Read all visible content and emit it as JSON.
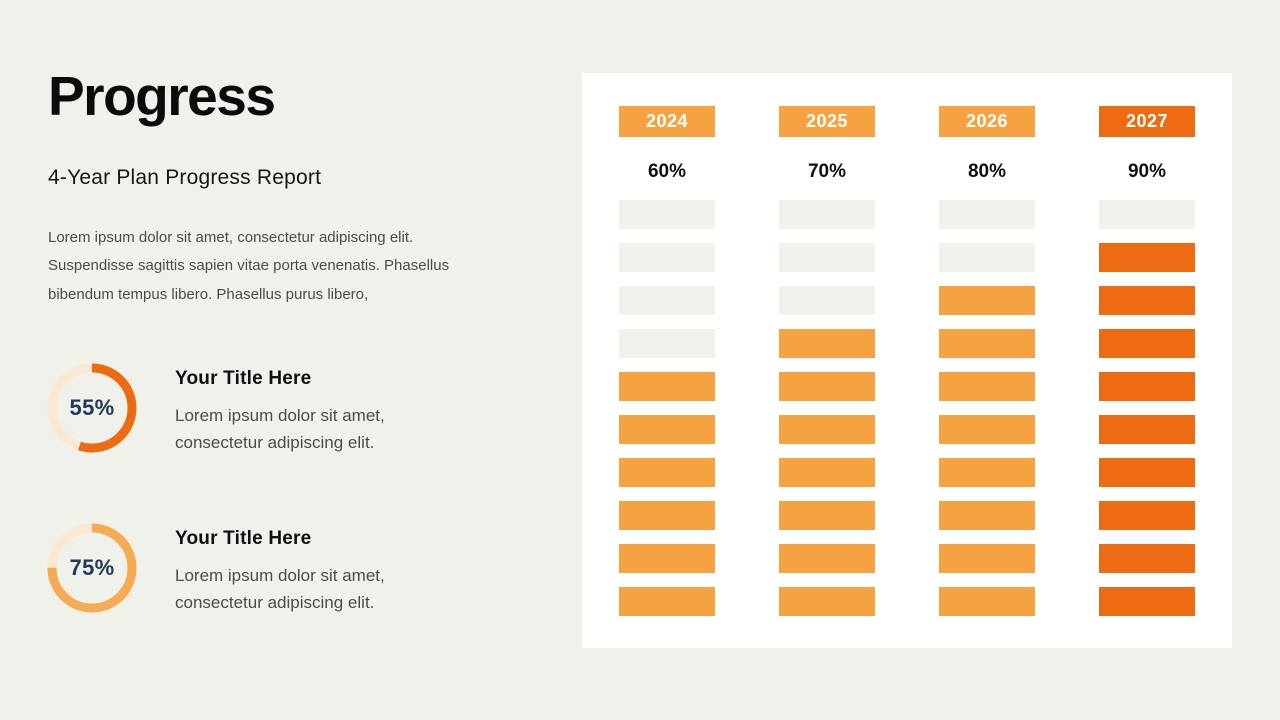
{
  "colors": {
    "background": "#F1F1EC",
    "panel": "#FFFFFF",
    "orange_light": "#F6A142",
    "orange_dark": "#ED6C13",
    "empty_cell": "#F1F1EB",
    "ring_track": "#FBE8D3",
    "navy": "#21395A",
    "body_text": "#4B4B4B"
  },
  "left": {
    "title": "Progress",
    "subtitle": "4-Year Plan Progress Report",
    "paragraph": "Lorem ipsum dolor sit amet, consectetur adipiscing elit. Suspendisse sagittis sapien vitae porta venenatis. Phasellus bibendum tempus libero. Phasellus purus libero,",
    "items": [
      {
        "percent_label": "55%",
        "percent_value": 55,
        "arc_color": "#ED6C13",
        "title": "Your Title Here",
        "description": "Lorem ipsum dolor sit amet, consectetur adipiscing elit."
      },
      {
        "percent_label": "75%",
        "percent_value": 75,
        "arc_color": "#F6AA52",
        "title": "Your Title Here",
        "description": "Lorem ipsum dolor sit amet, consectetur adipiscing elit."
      }
    ]
  },
  "chart_data": {
    "type": "bar",
    "title": "4-Year Plan Progress Report",
    "categories": [
      "2024",
      "2025",
      "2026",
      "2027"
    ],
    "values": [
      60,
      70,
      80,
      90
    ],
    "value_labels": [
      "60%",
      "70%",
      "80%",
      "90%"
    ],
    "segments_total": 10,
    "segments_filled": [
      6,
      7,
      8,
      9
    ],
    "column_colors": [
      "#F6A142",
      "#F6A142",
      "#F6A142",
      "#ED6C13"
    ],
    "empty_segment_color": "#F1F1EB",
    "orientation": "vertical-waffle",
    "legend": "none",
    "grid": "off"
  }
}
